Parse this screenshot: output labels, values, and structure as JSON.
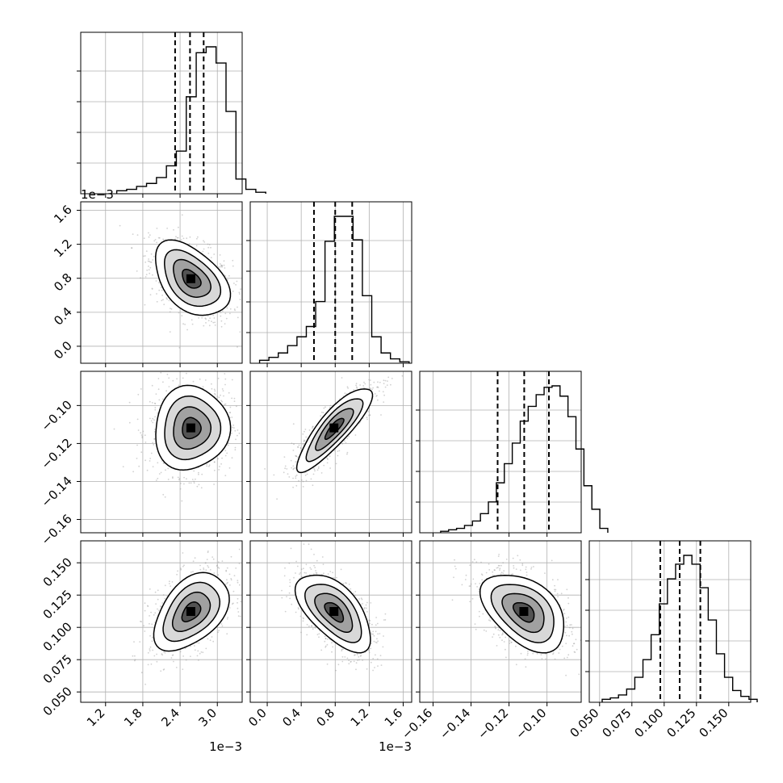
{
  "chart_data": {
    "type": "corner",
    "parameters": [
      {
        "range": [
          0.0008,
          0.0034
        ],
        "ticks": [
          0.0012,
          0.0018,
          0.0024,
          0.003
        ],
        "tick_labels": [
          "1.2",
          "1.8",
          "2.4",
          "3.0"
        ],
        "offset_label": "1e−3",
        "quantiles": [
          0.00232,
          0.00256,
          0.00278
        ],
        "mean": 0.00258,
        "sd": 0.0003,
        "histogram": [
          0.02,
          0.03,
          0.05,
          0.07,
          0.11,
          0.19,
          0.29,
          0.66,
          0.96,
          1.0,
          0.89,
          0.56,
          0.1,
          0.03,
          0.01
        ]
      },
      {
        "range": [
          -0.0002,
          0.0017
        ],
        "ticks": [
          0.0,
          0.0004,
          0.0008,
          0.0012,
          0.0016
        ],
        "tick_labels": [
          "0.0",
          "0.4",
          "0.8",
          "1.2",
          "1.6"
        ],
        "offset_label": "1e−3",
        "quantiles": [
          0.00055,
          0.0008,
          0.001
        ],
        "mean": 0.00079,
        "sd": 0.00022,
        "histogram": [
          0.02,
          0.04,
          0.07,
          0.12,
          0.18,
          0.25,
          0.42,
          0.83,
          1.0,
          1.0,
          0.84,
          0.46,
          0.18,
          0.07,
          0.03,
          0.01
        ]
      },
      {
        "range": [
          -0.167,
          -0.082
        ],
        "ticks": [
          -0.16,
          -0.14,
          -0.12,
          -0.1
        ],
        "tick_labels": [
          "−0.16",
          "−0.14",
          "−0.12",
          "−0.10"
        ],
        "offset_label": "",
        "quantiles": [
          -0.126,
          -0.112,
          -0.099
        ],
        "mean": -0.112,
        "sd": 0.011,
        "histogram": [
          0.01,
          0.02,
          0.03,
          0.05,
          0.08,
          0.13,
          0.21,
          0.34,
          0.47,
          0.61,
          0.76,
          0.86,
          0.94,
          0.99,
          1.0,
          0.93,
          0.79,
          0.57,
          0.32,
          0.16,
          0.03
        ]
      },
      {
        "range": [
          0.042,
          0.167
        ],
        "ticks": [
          0.05,
          0.075,
          0.1,
          0.125,
          0.15
        ],
        "tick_labels": [
          "0.050",
          "0.075",
          "0.100",
          "0.125",
          "0.150"
        ],
        "offset_label": "",
        "quantiles": [
          0.097,
          0.112,
          0.128
        ],
        "mean": 0.112,
        "sd": 0.015,
        "histogram": [
          0.02,
          0.03,
          0.05,
          0.09,
          0.17,
          0.29,
          0.46,
          0.67,
          0.84,
          0.94,
          1.0,
          0.94,
          0.78,
          0.56,
          0.33,
          0.17,
          0.08,
          0.04,
          0.02
        ]
      }
    ],
    "correlations": [
      [
        1,
        -0.45,
        0.05,
        0.45
      ],
      [
        -0.45,
        1,
        0.85,
        -0.6
      ],
      [
        0.05,
        0.85,
        1,
        -0.45
      ],
      [
        0.45,
        -0.6,
        -0.45,
        1
      ]
    ],
    "contour_levels_sigma": [
      0.5,
      1.0,
      1.5,
      2.0
    ],
    "grid": true,
    "colors": {
      "axis": "#000000",
      "grid": "#b0b0b0",
      "points": "#9a9a9a",
      "density": "#000000"
    }
  }
}
